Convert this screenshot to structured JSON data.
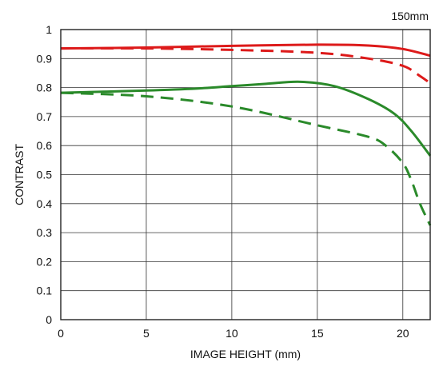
{
  "chart_data": {
    "type": "line",
    "annotation": "150mm",
    "xlabel": "IMAGE HEIGHT (mm)",
    "ylabel": "CONTRAST",
    "xlim": [
      0,
      21.6
    ],
    "ylim": [
      0,
      1
    ],
    "x_ticks": [
      0,
      5,
      10,
      15,
      20
    ],
    "y_ticks": [
      0,
      0.1,
      0.2,
      0.3,
      0.4,
      0.5,
      0.6,
      0.7,
      0.8,
      0.9,
      1
    ],
    "y_tick_labels": [
      "0",
      "0.1",
      "0.2",
      "0.3",
      "0.4",
      "0.5",
      "0.6",
      "0.7",
      "0.8",
      "0.9",
      "1"
    ],
    "grid": true,
    "series": [
      {
        "color": "#dd1a1a",
        "style": "solid",
        "x": [
          0,
          5,
          10,
          15,
          18,
          20,
          21.6
        ],
        "y": [
          0.935,
          0.938,
          0.944,
          0.948,
          0.945,
          0.933,
          0.91
        ]
      },
      {
        "color": "#dd1a1a",
        "style": "dashed",
        "x": [
          0,
          5,
          10,
          15,
          18,
          20,
          21,
          21.6
        ],
        "y": [
          0.935,
          0.935,
          0.93,
          0.92,
          0.9,
          0.875,
          0.84,
          0.815
        ]
      },
      {
        "color": "#2a8a2a",
        "style": "solid",
        "x": [
          0,
          5,
          8,
          10,
          12,
          14,
          16,
          18,
          19.5,
          20.5,
          21.6
        ],
        "y": [
          0.782,
          0.79,
          0.797,
          0.805,
          0.813,
          0.82,
          0.805,
          0.76,
          0.71,
          0.65,
          0.565
        ]
      },
      {
        "color": "#2a8a2a",
        "style": "dashed",
        "x": [
          0,
          5,
          10,
          15,
          18,
          19,
          20,
          20.5,
          21,
          21.6
        ],
        "y": [
          0.782,
          0.77,
          0.735,
          0.67,
          0.63,
          0.6,
          0.54,
          0.48,
          0.4,
          0.325
        ]
      }
    ]
  }
}
